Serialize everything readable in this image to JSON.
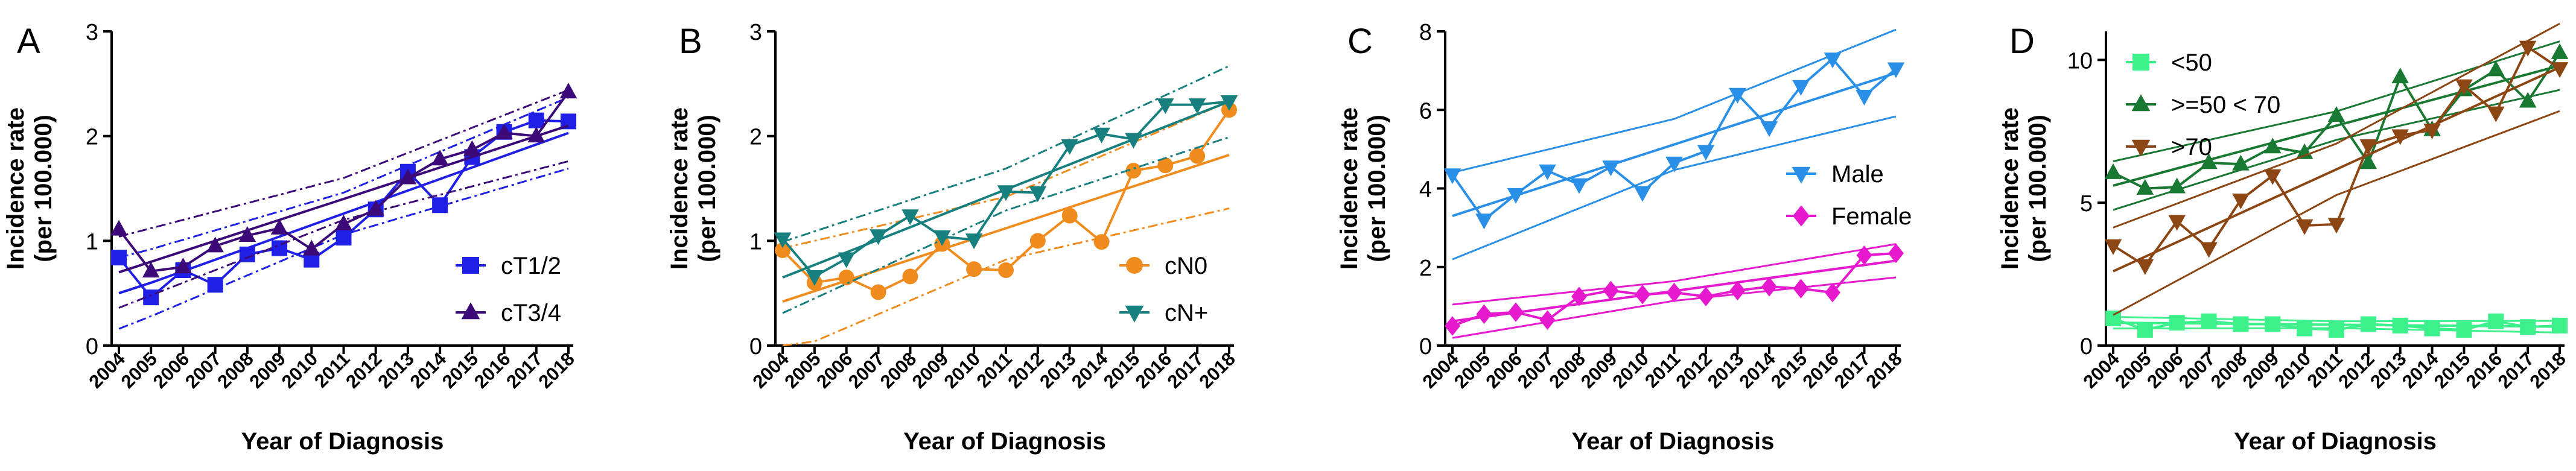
{
  "years": [
    "2004",
    "2005",
    "2006",
    "2007",
    "2008",
    "2009",
    "2010",
    "2011",
    "2012",
    "2013",
    "2014",
    "2015",
    "2016",
    "2017",
    "2018"
  ],
  "chart_data": [
    {
      "panel": "A",
      "type": "line",
      "xlabel": "Year of Diagnosis",
      "ylabel": [
        "Incidence rate",
        "(per 100.000)"
      ],
      "ylim": [
        0,
        3
      ],
      "yticks": [
        0,
        1,
        2,
        3
      ],
      "legend_position": "lower-right",
      "series": [
        {
          "name": "cT1/2",
          "color": "#1f1fe6",
          "marker": "square",
          "values": [
            0.84,
            0.46,
            0.72,
            0.58,
            0.87,
            0.93,
            0.82,
            1.03,
            1.3,
            1.66,
            1.34,
            1.8,
            2.04,
            2.15,
            2.14
          ],
          "fit": [
            0.5,
            0.6,
            0.71,
            0.82,
            0.93,
            1.04,
            1.15,
            1.26,
            1.37,
            1.48,
            1.59,
            1.7,
            1.81,
            1.92,
            2.03
          ],
          "band": 0.2
        },
        {
          "name": "cT3/4",
          "color": "#3c0a78",
          "marker": "triangle-up",
          "values": [
            1.11,
            0.71,
            0.75,
            0.95,
            1.05,
            1.12,
            0.92,
            1.16,
            1.3,
            1.6,
            1.78,
            1.87,
            2.03,
            2.0,
            2.42
          ],
          "fit": [
            0.7,
            0.8,
            0.9,
            1.0,
            1.1,
            1.2,
            1.3,
            1.4,
            1.5,
            1.6,
            1.7,
            1.8,
            1.9,
            2.0,
            2.1
          ],
          "band": 0.2
        }
      ]
    },
    {
      "panel": "B",
      "type": "line",
      "xlabel": "Year of Diagnosis",
      "ylabel": [
        "Incidence rate",
        "(per 100.000)"
      ],
      "ylim": [
        0,
        3
      ],
      "yticks": [
        0,
        1,
        2,
        3
      ],
      "legend_position": "lower-right",
      "series": [
        {
          "name": "cN0",
          "color": "#f08c1e",
          "marker": "circle",
          "values": [
            0.91,
            0.6,
            0.65,
            0.51,
            0.66,
            0.97,
            0.73,
            0.72,
            1.0,
            1.24,
            0.99,
            1.67,
            1.72,
            1.81,
            2.25
          ],
          "fit": [
            0.42,
            0.52,
            0.62,
            0.72,
            0.82,
            0.92,
            1.02,
            1.12,
            1.22,
            1.32,
            1.42,
            1.52,
            1.62,
            1.72,
            1.82
          ],
          "band": 0.3
        },
        {
          "name": "cN+",
          "color": "#17807e",
          "marker": "triangle-down",
          "values": [
            1.02,
            0.66,
            0.83,
            1.05,
            1.24,
            1.04,
            1.01,
            1.47,
            1.46,
            1.91,
            2.02,
            1.97,
            2.3,
            2.3,
            2.33
          ],
          "fit": [
            0.65,
            0.77,
            0.89,
            1.01,
            1.13,
            1.25,
            1.37,
            1.49,
            1.61,
            1.73,
            1.85,
            1.97,
            2.09,
            2.21,
            2.33
          ],
          "band": 0.2
        }
      ]
    },
    {
      "panel": "C",
      "type": "line",
      "xlabel": "Year of Diagnosis",
      "ylabel": [
        "Incidence rate",
        "(per 100.000)"
      ],
      "ylim": [
        0,
        8
      ],
      "yticks": [
        0,
        2,
        4,
        6,
        8
      ],
      "legend_position": "center-right",
      "series": [
        {
          "name": "Male",
          "color": "#2a8fe6",
          "marker": "triangle-down",
          "values": [
            4.35,
            3.2,
            3.85,
            4.45,
            4.1,
            4.55,
            3.9,
            4.65,
            4.95,
            6.4,
            5.55,
            6.6,
            7.3,
            6.35,
            7.05
          ],
          "fit": [
            3.3,
            3.56,
            3.82,
            4.08,
            4.34,
            4.6,
            4.86,
            5.12,
            5.38,
            5.64,
            5.9,
            6.16,
            6.42,
            6.68,
            6.94
          ],
          "band": 0.65
        },
        {
          "name": "Female",
          "color": "#e619cf",
          "marker": "diamond",
          "values": [
            0.5,
            0.8,
            0.85,
            0.65,
            1.25,
            1.4,
            1.3,
            1.35,
            1.25,
            1.4,
            1.5,
            1.45,
            1.35,
            2.3,
            2.35
          ],
          "fit": [
            0.62,
            0.73,
            0.84,
            0.95,
            1.06,
            1.17,
            1.28,
            1.39,
            1.5,
            1.61,
            1.72,
            1.83,
            1.94,
            2.05,
            2.16
          ],
          "band": 0.25
        }
      ]
    },
    {
      "panel": "D",
      "type": "line",
      "xlabel": "Year of Diagnosis",
      "ylabel": [
        "Incidence rate",
        "(per 100.000)"
      ],
      "ylim": [
        0,
        11
      ],
      "yticks": [
        0,
        5,
        10
      ],
      "legend_position": "top-left",
      "series": [
        {
          "name": "<50",
          "color": "#3cf08c",
          "marker": "square",
          "values": [
            0.95,
            0.55,
            0.8,
            0.85,
            0.75,
            0.75,
            0.6,
            0.55,
            0.75,
            0.7,
            0.6,
            0.55,
            0.85,
            0.65,
            0.7
          ],
          "fit": [
            0.8,
            0.79,
            0.78,
            0.77,
            0.76,
            0.75,
            0.74,
            0.73,
            0.72,
            0.71,
            0.7,
            0.69,
            0.68,
            0.67,
            0.66
          ],
          "band": 0.12
        },
        {
          "name": ">=50 < 70",
          "color": "#197832",
          "marker": "triangle-up",
          "values": [
            6.05,
            5.5,
            5.55,
            6.4,
            6.35,
            6.95,
            6.75,
            8.05,
            6.4,
            9.4,
            7.55,
            8.95,
            9.65,
            8.55,
            10.25
          ],
          "fit": [
            5.6,
            5.9,
            6.2,
            6.5,
            6.8,
            7.1,
            7.4,
            7.7,
            8.0,
            8.3,
            8.6,
            8.9,
            9.2,
            9.5,
            9.8
          ],
          "band": 0.5
        },
        {
          "name": ">70",
          "color": "#8c4614",
          "marker": "triangle-down",
          "values": [
            3.5,
            2.8,
            4.35,
            3.4,
            5.1,
            5.95,
            4.2,
            4.25,
            7.0,
            7.35,
            7.55,
            9.1,
            8.15,
            10.45,
            9.7
          ],
          "fit": [
            2.6,
            3.11,
            3.62,
            4.13,
            4.64,
            5.15,
            5.66,
            6.17,
            6.68,
            7.19,
            7.7,
            8.21,
            8.72,
            9.23,
            9.74
          ],
          "band": 0.9
        }
      ]
    }
  ]
}
